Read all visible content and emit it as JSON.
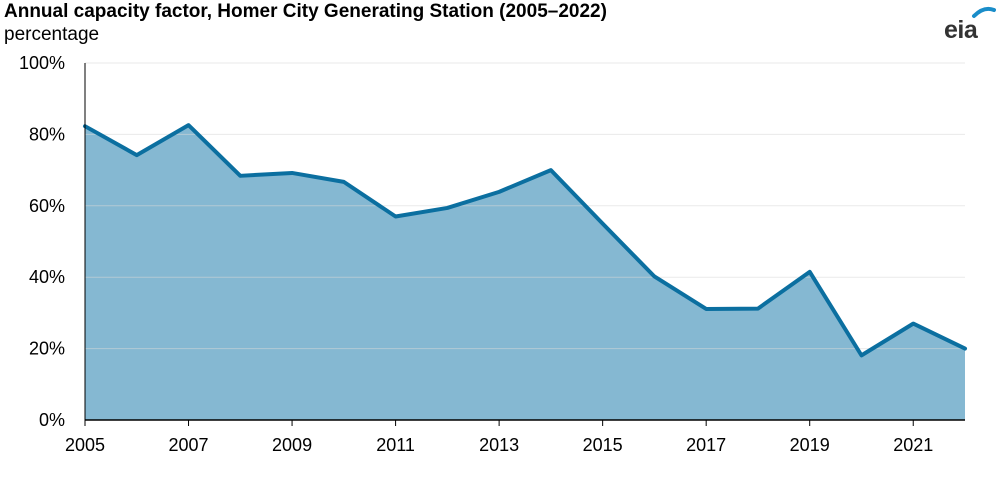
{
  "title": "Annual capacity factor, Homer City Generating Station (2005–2022)",
  "subtitle": "percentage",
  "logo_text": "eia",
  "colors": {
    "line": "#0b6fa0",
    "fill": "#85b8d2",
    "grid": "#d9d9d9",
    "axis": "#000000",
    "logo_arc": "#1a8dc9"
  },
  "chart_data": {
    "type": "area",
    "title": "Annual capacity factor, Homer City Generating Station (2005–2022)",
    "ylabel": "percentage",
    "xlabel": "",
    "x": [
      2005,
      2006,
      2007,
      2008,
      2009,
      2010,
      2011,
      2012,
      2013,
      2014,
      2015,
      2016,
      2017,
      2018,
      2019,
      2020,
      2021,
      2022
    ],
    "series": [
      {
        "values": [
          82.3,
          74.2,
          82.6,
          68.4,
          69.2,
          66.7,
          57.0,
          59.4,
          63.9,
          70.0,
          55.0,
          40.2,
          31.1,
          31.2,
          41.5,
          18.1,
          27.0,
          20.0
        ]
      }
    ],
    "ylim": [
      0,
      100
    ],
    "yticks": [
      "0%",
      "20%",
      "40%",
      "60%",
      "80%",
      "100%"
    ],
    "xticks": [
      "2005",
      "2007",
      "2009",
      "2011",
      "2013",
      "2015",
      "2017",
      "2019",
      "2021"
    ],
    "grid": true,
    "legend": "none"
  }
}
